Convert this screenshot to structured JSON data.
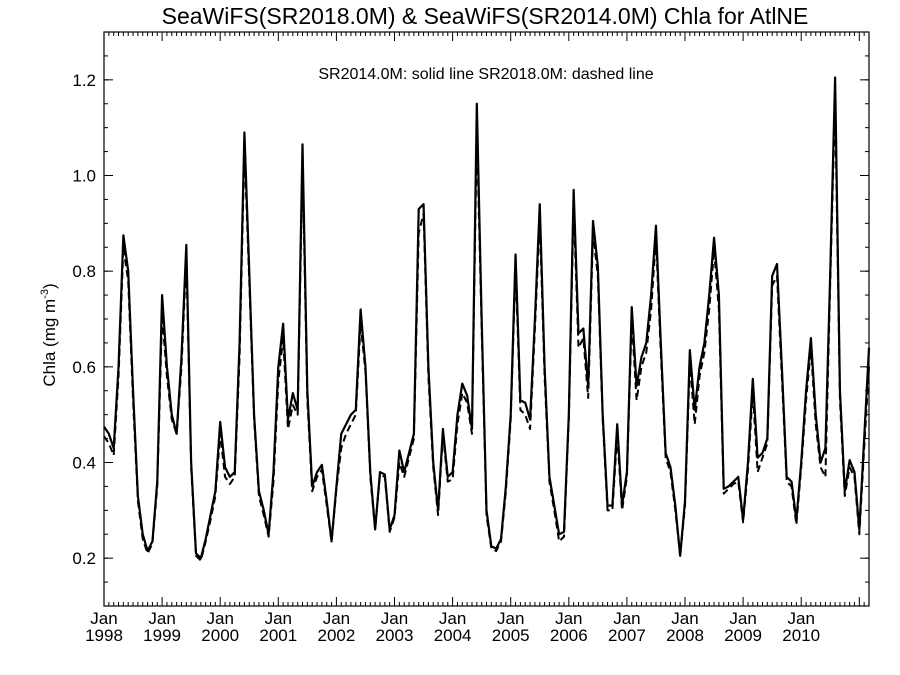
{
  "chart_data": {
    "type": "line",
    "title": "SeaWiFS(SR2018.0M) & SeaWiFS(SR2014.0M)  Chla for AtlNE",
    "annotation": "SR2014.0M: solid line   SR2018.0M: dashed line",
    "ylabel_main": "Chla (mg m",
    "ylabel_sup": "-3",
    "ylabel_close": ")",
    "xlabel": "",
    "x_range": [
      "1998-01",
      "2010-12"
    ],
    "ylim": [
      0.1,
      1.3
    ],
    "y_ticks": [
      {
        "value": 0.2,
        "label": "0.2"
      },
      {
        "value": 0.4,
        "label": "0.4"
      },
      {
        "value": 0.6,
        "label": "0.6"
      },
      {
        "value": 0.8,
        "label": "0.8"
      },
      {
        "value": 1.0,
        "label": "1.0"
      },
      {
        "value": 1.2,
        "label": "1.2"
      }
    ],
    "x_ticks": [
      {
        "month": "Jan",
        "year": "1998"
      },
      {
        "month": "Jan",
        "year": "1999"
      },
      {
        "month": "Jan",
        "year": "2000"
      },
      {
        "month": "Jan",
        "year": "2001"
      },
      {
        "month": "Jan",
        "year": "2002"
      },
      {
        "month": "Jan",
        "year": "2003"
      },
      {
        "month": "Jan",
        "year": "2004"
      },
      {
        "month": "Jan",
        "year": "2005"
      },
      {
        "month": "Jan",
        "year": "2006"
      },
      {
        "month": "Jan",
        "year": "2007"
      },
      {
        "month": "Jan",
        "year": "2008"
      },
      {
        "month": "Jan",
        "year": "2009"
      },
      {
        "month": "Jan",
        "year": "2010"
      }
    ],
    "grid": false,
    "series": [
      {
        "style": "solid",
        "color": "#000000",
        "values": [
          0.475,
          0.46,
          0.43,
          0.6,
          0.875,
          0.8,
          0.55,
          0.33,
          0.25,
          0.215,
          0.235,
          0.36,
          0.75,
          0.6,
          0.5,
          0.46,
          0.62,
          0.855,
          0.4,
          0.21,
          0.2,
          0.24,
          0.29,
          0.34,
          0.485,
          0.39,
          0.37,
          0.38,
          0.65,
          1.09,
          0.8,
          0.5,
          0.34,
          0.3,
          0.25,
          0.38,
          0.6,
          0.69,
          0.49,
          0.545,
          0.51,
          1.065,
          0.55,
          0.35,
          0.38,
          0.395,
          0.32,
          0.235,
          0.35,
          0.46,
          0.48,
          0.5,
          0.51,
          0.72,
          0.6,
          0.38,
          0.26,
          0.38,
          0.375,
          0.26,
          0.29,
          0.425,
          0.38,
          0.42,
          0.46,
          0.93,
          0.94,
          0.6,
          0.4,
          0.3,
          0.47,
          0.37,
          0.38,
          0.5,
          0.565,
          0.54,
          0.47,
          1.15,
          0.7,
          0.3,
          0.225,
          0.22,
          0.24,
          0.35,
          0.5,
          0.835,
          0.53,
          0.525,
          0.49,
          0.7,
          0.94,
          0.6,
          0.37,
          0.31,
          0.25,
          0.255,
          0.5,
          0.97,
          0.67,
          0.68,
          0.56,
          0.905,
          0.81,
          0.5,
          0.31,
          0.31,
          0.48,
          0.31,
          0.38,
          0.725,
          0.56,
          0.62,
          0.65,
          0.75,
          0.895,
          0.65,
          0.42,
          0.39,
          0.31,
          0.205,
          0.32,
          0.635,
          0.51,
          0.6,
          0.65,
          0.75,
          0.87,
          0.75,
          0.345,
          0.35,
          0.36,
          0.37,
          0.28,
          0.4,
          0.575,
          0.41,
          0.42,
          0.45,
          0.79,
          0.815,
          0.6,
          0.37,
          0.36,
          0.28,
          0.4,
          0.55,
          0.66,
          0.5,
          0.4,
          0.43,
          0.8,
          1.205,
          0.55,
          0.34,
          0.405,
          0.38,
          0.26,
          0.45,
          0.64
        ]
      },
      {
        "style": "dashed",
        "color": "#000000",
        "values": [
          0.455,
          0.44,
          0.415,
          0.58,
          0.85,
          0.78,
          0.53,
          0.32,
          0.24,
          0.21,
          0.23,
          0.35,
          0.71,
          0.58,
          0.49,
          0.46,
          0.6,
          0.83,
          0.39,
          0.205,
          0.195,
          0.235,
          0.28,
          0.33,
          0.46,
          0.37,
          0.355,
          0.37,
          0.62,
          1.06,
          0.78,
          0.49,
          0.33,
          0.29,
          0.245,
          0.36,
          0.57,
          0.66,
          0.47,
          0.52,
          0.5,
          1.03,
          0.53,
          0.34,
          0.37,
          0.385,
          0.31,
          0.235,
          0.345,
          0.43,
          0.46,
          0.48,
          0.5,
          0.69,
          0.59,
          0.37,
          0.26,
          0.375,
          0.37,
          0.255,
          0.285,
          0.4,
          0.37,
          0.41,
          0.45,
          0.88,
          0.92,
          0.58,
          0.39,
          0.29,
          0.46,
          0.36,
          0.365,
          0.48,
          0.545,
          0.525,
          0.46,
          1.1,
          0.68,
          0.29,
          0.22,
          0.215,
          0.235,
          0.34,
          0.49,
          0.81,
          0.51,
          0.5,
          0.47,
          0.68,
          0.91,
          0.58,
          0.36,
          0.3,
          0.235,
          0.245,
          0.49,
          0.94,
          0.64,
          0.66,
          0.535,
          0.88,
          0.79,
          0.49,
          0.3,
          0.3,
          0.46,
          0.3,
          0.37,
          0.7,
          0.53,
          0.6,
          0.63,
          0.72,
          0.87,
          0.63,
          0.41,
          0.38,
          0.3,
          0.205,
          0.31,
          0.61,
          0.48,
          0.58,
          0.63,
          0.72,
          0.845,
          0.72,
          0.335,
          0.345,
          0.355,
          0.36,
          0.275,
          0.385,
          0.55,
          0.38,
          0.41,
          0.44,
          0.77,
          0.79,
          0.58,
          0.36,
          0.35,
          0.27,
          0.39,
          0.53,
          0.64,
          0.48,
          0.39,
          0.37,
          0.78,
          1.16,
          0.53,
          0.33,
          0.39,
          0.37,
          0.25,
          0.43,
          0.6
        ]
      }
    ]
  }
}
